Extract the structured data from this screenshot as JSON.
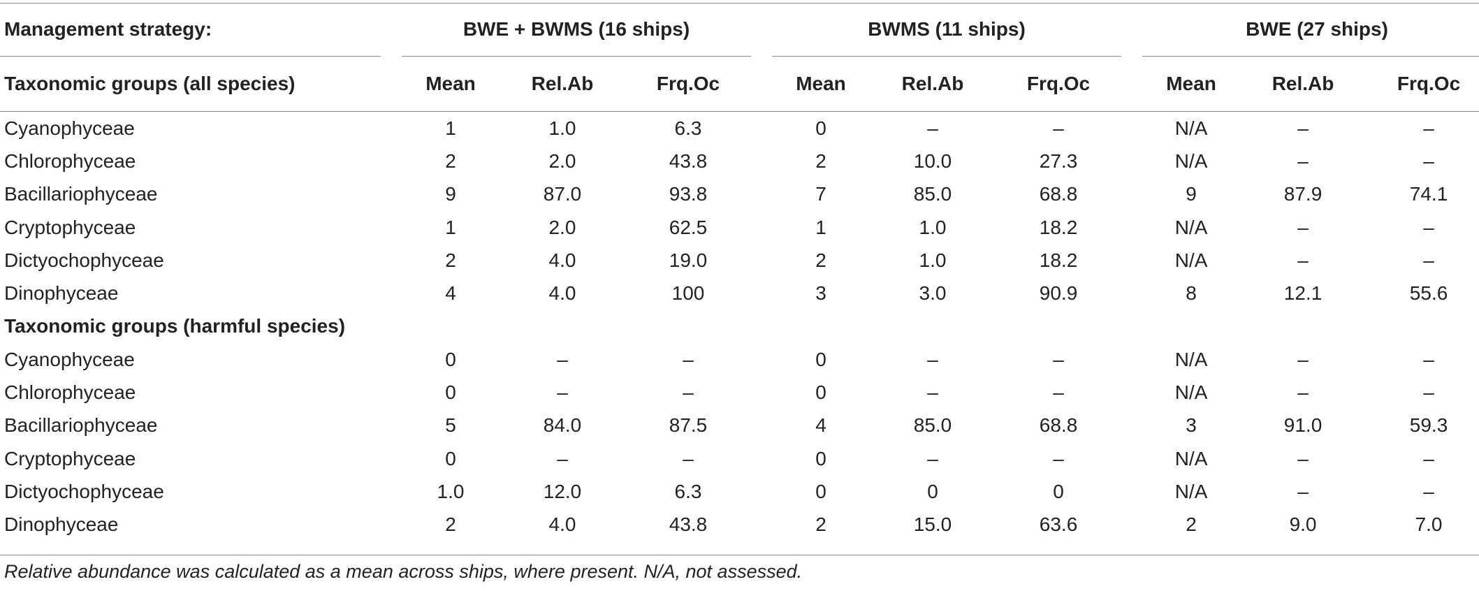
{
  "header": {
    "management_label": "Management strategy:",
    "groups": [
      "BWE + BWMS (16 ships)",
      "BWMS (11 ships)",
      "BWE (27 ships)"
    ],
    "taxonomic_all_label": "Taxonomic groups (all species)",
    "sub_columns": [
      "Mean",
      "Rel.Ab",
      "Frq.Oc"
    ]
  },
  "sections": [
    {
      "title": "",
      "rows": [
        {
          "name": "Cyanophyceae",
          "values": [
            "1",
            "1.0",
            "6.3",
            "0",
            "–",
            "–",
            "N/A",
            "–",
            "–"
          ]
        },
        {
          "name": "Chlorophyceae",
          "values": [
            "2",
            "2.0",
            "43.8",
            "2",
            "10.0",
            "27.3",
            "N/A",
            "–",
            "–"
          ]
        },
        {
          "name": "Bacillariophyceae",
          "values": [
            "9",
            "87.0",
            "93.8",
            "7",
            "85.0",
            "68.8",
            "9",
            "87.9",
            "74.1"
          ]
        },
        {
          "name": "Cryptophyceae",
          "values": [
            "1",
            "2.0",
            "62.5",
            "1",
            "1.0",
            "18.2",
            "N/A",
            "–",
            "–"
          ]
        },
        {
          "name": "Dictyochophyceae",
          "values": [
            "2",
            "4.0",
            "19.0",
            "2",
            "1.0",
            "18.2",
            "N/A",
            "–",
            "–"
          ]
        },
        {
          "name": "Dinophyceae",
          "values": [
            "4",
            "4.0",
            "100",
            "3",
            "3.0",
            "90.9",
            "8",
            "12.1",
            "55.6"
          ]
        }
      ]
    },
    {
      "title": "Taxonomic groups (harmful species)",
      "rows": [
        {
          "name": "Cyanophyceae",
          "values": [
            "0",
            "–",
            "–",
            "0",
            "–",
            "–",
            "N/A",
            "–",
            "–"
          ]
        },
        {
          "name": "Chlorophyceae",
          "values": [
            "0",
            "–",
            "–",
            "0",
            "–",
            "–",
            "N/A",
            "–",
            "–"
          ]
        },
        {
          "name": "Bacillariophyceae",
          "values": [
            "5",
            "84.0",
            "87.5",
            "4",
            "85.0",
            "68.8",
            "3",
            "91.0",
            "59.3"
          ]
        },
        {
          "name": "Cryptophyceae",
          "values": [
            "0",
            "–",
            "–",
            "0",
            "–",
            "–",
            "N/A",
            "–",
            "–"
          ]
        },
        {
          "name": "Dictyochophyceae",
          "values": [
            "1.0",
            "12.0",
            "6.3",
            "0",
            "0",
            "0",
            "N/A",
            "–",
            "–"
          ]
        },
        {
          "name": "Dinophyceae",
          "values": [
            "2",
            "4.0",
            "43.8",
            "2",
            "15.0",
            "63.6",
            "2",
            "9.0",
            "7.0"
          ]
        }
      ]
    }
  ],
  "footnote": "Relative abundance was calculated as a mean across ships, where present. N/A, not assessed."
}
